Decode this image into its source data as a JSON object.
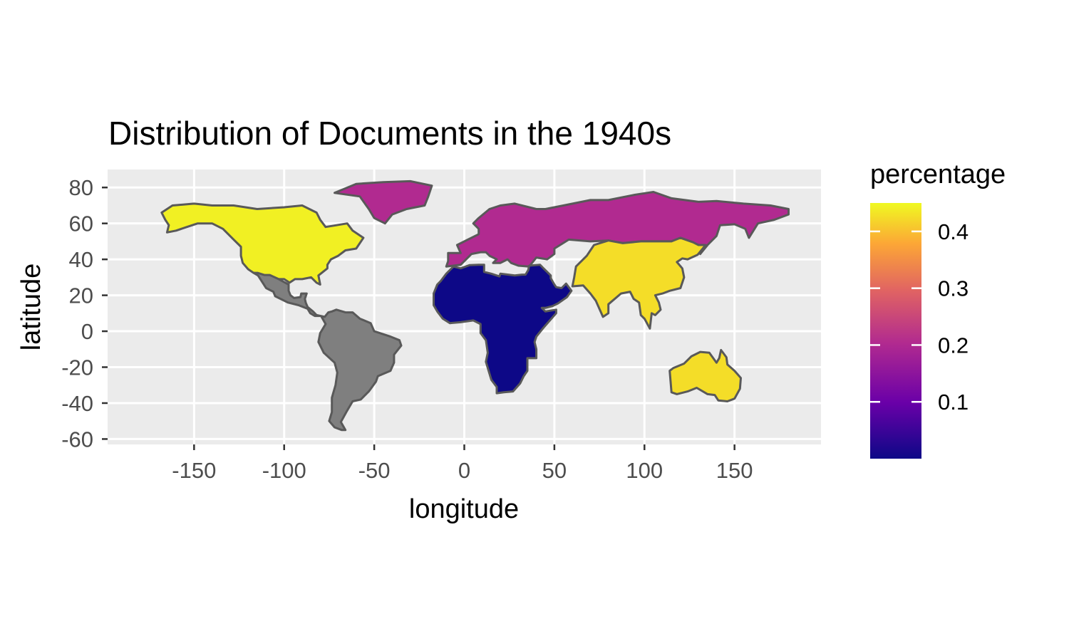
{
  "chart_data": {
    "type": "choropleth map",
    "title": "Distribution of Documents in the 1940s",
    "xlabel": "longitude",
    "ylabel": "latitude",
    "xlim": [
      -198,
      198
    ],
    "ylim": [
      -63,
      90
    ],
    "x_ticks": [
      -150,
      -100,
      -50,
      0,
      50,
      100,
      150
    ],
    "y_ticks": [
      80,
      60,
      40,
      20,
      0,
      -20,
      -40,
      -60
    ],
    "grid": true,
    "panel_background": "#ebebeb",
    "legend": {
      "title": "percentage",
      "position": "right",
      "range": [
        0,
        0.45
      ],
      "ticks": [
        0.1,
        0.2,
        0.3,
        0.4
      ],
      "palette": [
        "#0d0887",
        "#6a00a8",
        "#b12a90",
        "#e16462",
        "#fca636",
        "#f0f921"
      ]
    },
    "missing_color": "#7f7f7f",
    "regions": [
      {
        "region": "North America",
        "value": 0.44
      },
      {
        "region": "Greenland",
        "value": 0.18
      },
      {
        "region": "Europe & Russia",
        "value": 0.18
      },
      {
        "region": "Africa & Middle East",
        "value": 0.0
      },
      {
        "region": "Asia",
        "value": 0.42
      },
      {
        "region": "Australia & Oceania",
        "value": 0.42
      },
      {
        "region": "Latin America",
        "value": null
      }
    ]
  }
}
